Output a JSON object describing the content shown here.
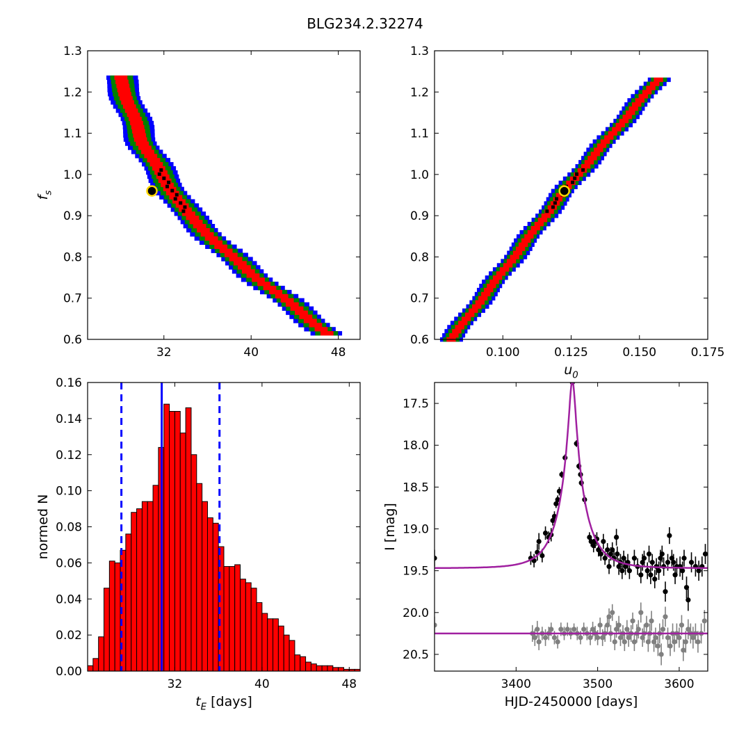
{
  "figure": {
    "title": "BLG234.2.32274"
  },
  "colors": {
    "level_outer": "#0000ff",
    "level_mid": "#008000",
    "level_inner": "#ff0000",
    "level_best": "#000000",
    "best_fit_marker_edge": "#ffd700",
    "histogram_bar": "#ff0000",
    "median_line": "#0000ff",
    "model_curve": "#a020a0",
    "lens_photometry": "#000000",
    "comparison_photometry": "#808080"
  },
  "chart_data": [
    {
      "id": "fs_vs_tE",
      "type": "heatmap",
      "xlabel": "",
      "ylabel": "f_s",
      "xlim": [
        25,
        50
      ],
      "ylim": [
        0.6,
        1.3
      ],
      "xticks": [
        "32",
        "40",
        "48"
      ],
      "yticks": [
        "0.6",
        "0.7",
        "0.8",
        "0.9",
        "1.0",
        "1.1",
        "1.2",
        "1.3"
      ],
      "best_fit": {
        "tE": 30.9,
        "fs": 0.96
      },
      "region_centerline": [
        [
          27.9,
          1.24
        ],
        [
          30.0,
          1.08
        ],
        [
          32.0,
          0.99
        ],
        [
          34.0,
          0.91
        ],
        [
          37.0,
          0.83
        ],
        [
          40.0,
          0.76
        ],
        [
          43.0,
          0.7
        ],
        [
          45.5,
          0.645
        ],
        [
          47.0,
          0.615
        ]
      ],
      "half_widths": {
        "outer": 1.45,
        "mid": 1.05,
        "inner": 0.6,
        "best": 0.22
      }
    },
    {
      "id": "fs_vs_u0",
      "type": "heatmap",
      "xlabel": "u_0",
      "ylabel": "",
      "xlim": [
        0.075,
        0.175
      ],
      "ylim": [
        0.6,
        1.3
      ],
      "xticks": [
        "0.100",
        "0.125",
        "0.150",
        "0.175"
      ],
      "yticks": [
        "0.6",
        "0.7",
        "0.8",
        "0.9",
        "1.0",
        "1.1",
        "1.2",
        "1.3"
      ],
      "best_fit": {
        "u0": 0.1225,
        "fs": 0.96
      },
      "region_centerline": [
        [
          0.081,
          0.6
        ],
        [
          0.1225,
          0.96
        ],
        [
          0.158,
          1.24
        ]
      ],
      "half_widths": {
        "outer": 0.0042,
        "mid": 0.003,
        "inner": 0.0017,
        "best": 0.0006
      }
    },
    {
      "id": "tE_histogram",
      "type": "bar",
      "xlabel": "t_E [days]",
      "ylabel": "normed N",
      "xlim": [
        24,
        49
      ],
      "ylim": [
        0.0,
        0.16
      ],
      "xticks": [
        "32",
        "40",
        "48"
      ],
      "yticks": [
        "0.00",
        "0.02",
        "0.04",
        "0.06",
        "0.08",
        "0.10",
        "0.12",
        "0.14",
        "0.16"
      ],
      "bin_width": 0.5,
      "bin_start": 24,
      "values": [
        0.003,
        0.007,
        0.019,
        0.046,
        0.061,
        0.06,
        0.067,
        0.076,
        0.088,
        0.09,
        0.094,
        0.094,
        0.103,
        0.124,
        0.148,
        0.144,
        0.144,
        0.132,
        0.146,
        0.12,
        0.104,
        0.094,
        0.085,
        0.082,
        0.069,
        0.058,
        0.058,
        0.059,
        0.051,
        0.049,
        0.046,
        0.038,
        0.032,
        0.029,
        0.029,
        0.025,
        0.02,
        0.017,
        0.009,
        0.008,
        0.005,
        0.004,
        0.003,
        0.003,
        0.003,
        0.002,
        0.002,
        0.001,
        0.001,
        0.001
      ],
      "median": 30.8,
      "lower_bound": 27.1,
      "upper_bound": 36.1
    },
    {
      "id": "light_curve",
      "type": "scatter",
      "xlabel": "HJD-2450000 [days]",
      "ylabel": "I [mag]",
      "xlim": [
        3300,
        3635
      ],
      "ylim": [
        20.7,
        17.25
      ],
      "xticks": [
        "3400",
        "3500",
        "3600"
      ],
      "yticks": [
        "17.5",
        "18.0",
        "18.5",
        "19.0",
        "19.5",
        "20.0",
        "20.5"
      ],
      "model": {
        "t0": 3469,
        "tE": 30.8,
        "u0": 0.1225,
        "fs": 0.96,
        "baseline": 19.47
      },
      "lens_points": [
        [
          3300,
          19.35,
          0.1
        ],
        [
          3418,
          19.35,
          0.08
        ],
        [
          3422,
          19.38,
          0.08
        ],
        [
          3426,
          19.28,
          0.1
        ],
        [
          3428,
          19.15,
          0.1
        ],
        [
          3432,
          19.32,
          0.08
        ],
        [
          3436,
          19.05,
          0.08
        ],
        [
          3440,
          19.1,
          0.07
        ],
        [
          3443,
          19.07,
          0.08
        ],
        [
          3445,
          18.9,
          0.06
        ],
        [
          3447,
          18.85,
          0.06
        ],
        [
          3449,
          18.7,
          0.05
        ],
        [
          3451,
          18.65,
          0.05
        ],
        [
          3453,
          18.55,
          0.05
        ],
        [
          3456,
          18.35,
          0.04
        ],
        [
          3460,
          18.15,
          0.04
        ],
        [
          3469,
          17.25,
          0.03
        ],
        [
          3474,
          17.98,
          0.04
        ],
        [
          3477,
          18.25,
          0.04
        ],
        [
          3479,
          18.35,
          0.04
        ],
        [
          3480,
          18.45,
          0.04
        ],
        [
          3484,
          18.65,
          0.05
        ],
        [
          3490,
          19.1,
          0.06
        ],
        [
          3492,
          19.15,
          0.06
        ],
        [
          3495,
          19.2,
          0.08
        ],
        [
          3497,
          19.15,
          0.08
        ],
        [
          3499,
          19.12,
          0.08
        ],
        [
          3501,
          19.25,
          0.08
        ],
        [
          3504,
          19.3,
          0.08
        ],
        [
          3507,
          19.15,
          0.09
        ],
        [
          3509,
          19.35,
          0.08
        ],
        [
          3512,
          19.25,
          0.08
        ],
        [
          3514,
          19.45,
          0.09
        ],
        [
          3516,
          19.3,
          0.08
        ],
        [
          3518,
          19.25,
          0.09
        ],
        [
          3520,
          19.35,
          0.1
        ],
        [
          3523,
          19.1,
          0.1
        ],
        [
          3524,
          19.3,
          0.09
        ],
        [
          3526,
          19.45,
          0.1
        ],
        [
          3528,
          19.4,
          0.1
        ],
        [
          3530,
          19.5,
          0.1
        ],
        [
          3532,
          19.35,
          0.09
        ],
        [
          3534,
          19.45,
          0.1
        ],
        [
          3537,
          19.4,
          0.1
        ],
        [
          3539,
          19.5,
          0.1
        ],
        [
          3545,
          19.35,
          0.1
        ],
        [
          3549,
          19.45,
          0.1
        ],
        [
          3553,
          19.55,
          0.1
        ],
        [
          3555,
          19.4,
          0.1
        ],
        [
          3557,
          19.35,
          0.09
        ],
        [
          3561,
          19.5,
          0.1
        ],
        [
          3563,
          19.3,
          0.1
        ],
        [
          3565,
          19.55,
          0.11
        ],
        [
          3567,
          19.4,
          0.1
        ],
        [
          3570,
          19.6,
          0.11
        ],
        [
          3572,
          19.45,
          0.1
        ],
        [
          3575,
          19.5,
          0.11
        ],
        [
          3577,
          19.35,
          0.1
        ],
        [
          3579,
          19.3,
          0.1
        ],
        [
          3581,
          19.45,
          0.11
        ],
        [
          3583,
          19.75,
          0.12
        ],
        [
          3586,
          19.4,
          0.1
        ],
        [
          3588,
          19.08,
          0.1
        ],
        [
          3591,
          19.35,
          0.1
        ],
        [
          3593,
          19.4,
          0.1
        ],
        [
          3595,
          19.55,
          0.11
        ],
        [
          3597,
          19.45,
          0.1
        ],
        [
          3601,
          19.45,
          0.12
        ],
        [
          3604,
          19.5,
          0.11
        ],
        [
          3606,
          19.35,
          0.1
        ],
        [
          3609,
          19.7,
          0.13
        ],
        [
          3611,
          19.85,
          0.13
        ],
        [
          3615,
          19.4,
          0.12
        ],
        [
          3620,
          19.45,
          0.12
        ],
        [
          3624,
          19.5,
          0.12
        ],
        [
          3628,
          19.45,
          0.12
        ],
        [
          3632,
          19.3,
          0.12
        ]
      ],
      "comparison_model_baseline": 20.25,
      "comparison_points": [
        [
          3300,
          20.15,
          0.1
        ],
        [
          3420,
          20.25,
          0.1
        ],
        [
          3423,
          20.3,
          0.1
        ],
        [
          3426,
          20.2,
          0.1
        ],
        [
          3428,
          20.35,
          0.1
        ],
        [
          3432,
          20.25,
          0.08
        ],
        [
          3436,
          20.3,
          0.1
        ],
        [
          3440,
          20.25,
          0.08
        ],
        [
          3443,
          20.2,
          0.08
        ],
        [
          3447,
          20.3,
          0.08
        ],
        [
          3451,
          20.35,
          0.08
        ],
        [
          3455,
          20.2,
          0.08
        ],
        [
          3459,
          20.25,
          0.08
        ],
        [
          3463,
          20.2,
          0.08
        ],
        [
          3467,
          20.25,
          0.07
        ],
        [
          3471,
          20.2,
          0.07
        ],
        [
          3475,
          20.25,
          0.08
        ],
        [
          3479,
          20.3,
          0.08
        ],
        [
          3483,
          20.2,
          0.08
        ],
        [
          3487,
          20.25,
          0.08
        ],
        [
          3491,
          20.3,
          0.09
        ],
        [
          3494,
          20.2,
          0.09
        ],
        [
          3497,
          20.25,
          0.09
        ],
        [
          3500,
          20.3,
          0.09
        ],
        [
          3503,
          20.15,
          0.09
        ],
        [
          3506,
          20.3,
          0.1
        ],
        [
          3509,
          20.25,
          0.1
        ],
        [
          3512,
          20.15,
          0.1
        ],
        [
          3514,
          20.05,
          0.1
        ],
        [
          3516,
          20.25,
          0.1
        ],
        [
          3518,
          20.0,
          0.1
        ],
        [
          3521,
          20.35,
          0.1
        ],
        [
          3523,
          20.2,
          0.1
        ],
        [
          3526,
          20.15,
          0.11
        ],
        [
          3528,
          20.3,
          0.1
        ],
        [
          3531,
          20.25,
          0.1
        ],
        [
          3533,
          20.35,
          0.11
        ],
        [
          3536,
          20.2,
          0.11
        ],
        [
          3538,
          20.3,
          0.11
        ],
        [
          3541,
          20.25,
          0.1
        ],
        [
          3543,
          20.1,
          0.1
        ],
        [
          3545,
          20.35,
          0.11
        ],
        [
          3548,
          20.25,
          0.11
        ],
        [
          3550,
          20.2,
          0.11
        ],
        [
          3553,
          20.0,
          0.12
        ],
        [
          3555,
          20.3,
          0.11
        ],
        [
          3557,
          20.25,
          0.11
        ],
        [
          3560,
          20.15,
          0.11
        ],
        [
          3562,
          20.35,
          0.12
        ],
        [
          3564,
          20.25,
          0.12
        ],
        [
          3566,
          20.1,
          0.12
        ],
        [
          3569,
          20.35,
          0.12
        ],
        [
          3571,
          20.3,
          0.12
        ],
        [
          3574,
          20.4,
          0.12
        ],
        [
          3576,
          20.25,
          0.12
        ],
        [
          3578,
          20.5,
          0.13
        ],
        [
          3580,
          20.2,
          0.12
        ],
        [
          3583,
          20.05,
          0.12
        ],
        [
          3586,
          20.3,
          0.12
        ],
        [
          3589,
          20.4,
          0.12
        ],
        [
          3592,
          20.25,
          0.12
        ],
        [
          3594,
          20.35,
          0.12
        ],
        [
          3597,
          20.25,
          0.12
        ],
        [
          3600,
          20.3,
          0.12
        ],
        [
          3603,
          20.15,
          0.12
        ],
        [
          3605,
          20.45,
          0.13
        ],
        [
          3608,
          20.35,
          0.13
        ],
        [
          3611,
          20.2,
          0.12
        ],
        [
          3614,
          20.25,
          0.12
        ],
        [
          3617,
          20.3,
          0.13
        ],
        [
          3620,
          20.25,
          0.12
        ],
        [
          3623,
          20.35,
          0.13
        ],
        [
          3627,
          20.25,
          0.12
        ],
        [
          3631,
          20.1,
          0.13
        ]
      ]
    }
  ]
}
